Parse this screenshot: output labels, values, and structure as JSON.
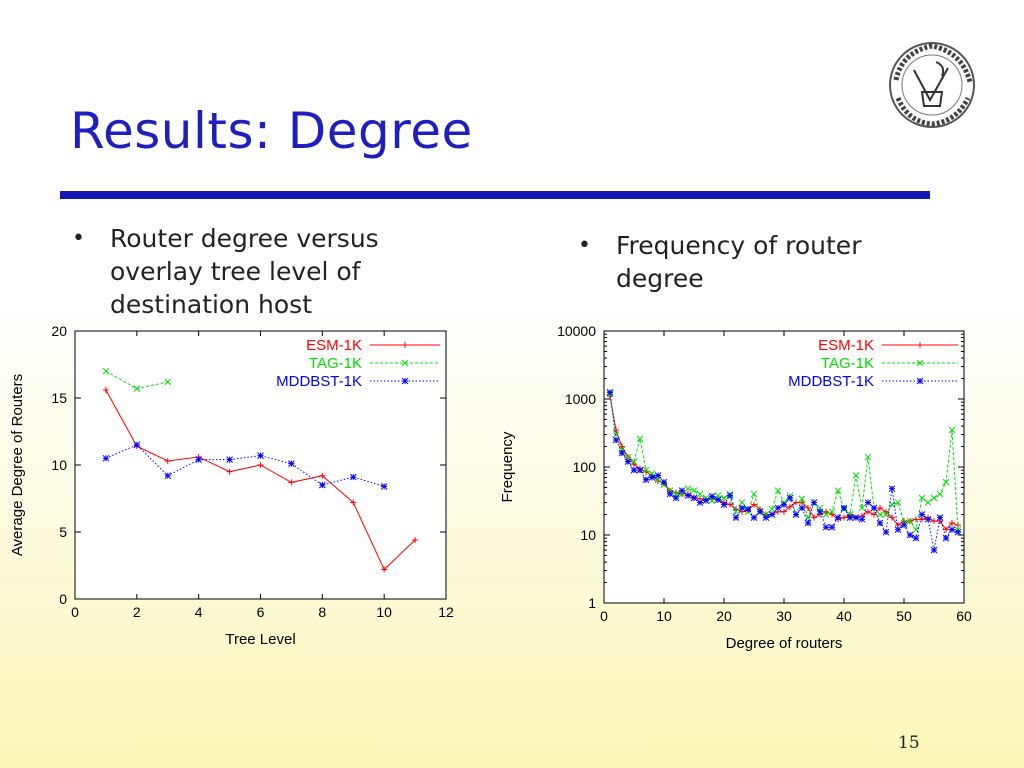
{
  "slide": {
    "title": "Results: Degree",
    "page_number": "15",
    "bullets_left": [
      "Router degree versus overlay tree level of destination host"
    ],
    "bullets_right": [
      "Frequency of router degree"
    ],
    "bullet_glyph": "•",
    "logo_icon": "university-seal-logo",
    "colors": {
      "title": "#1f1fbf",
      "rule": "#1717b5",
      "esm": "#ff0000",
      "tag": "#00dd00",
      "mddbst": "#0000ff"
    }
  },
  "chart_data": [
    {
      "type": "line",
      "xlabel": "Tree Level",
      "ylabel": "Average Degree of Routers",
      "xlim": [
        0,
        12
      ],
      "ylim": [
        0,
        20
      ],
      "x_ticks": [
        "0",
        "2",
        "4",
        "6",
        "8",
        "10",
        "12"
      ],
      "y_ticks": [
        "0",
        "5",
        "10",
        "15",
        "20"
      ],
      "legend_position": "top-right",
      "series": [
        {
          "name": "ESM-1K",
          "color": "#ff0000",
          "marker": "+",
          "dash": "solid",
          "x": [
            1,
            2,
            3,
            4,
            5,
            6,
            7,
            8,
            9,
            10,
            11
          ],
          "y": [
            15.6,
            11.4,
            10.3,
            10.6,
            9.5,
            10.0,
            8.7,
            9.2,
            7.2,
            2.2,
            4.4
          ]
        },
        {
          "name": "TAG-1K",
          "color": "#00dd00",
          "marker": "x",
          "dash": "dashed",
          "x": [
            1,
            2,
            3
          ],
          "y": [
            17.0,
            15.7,
            16.2
          ]
        },
        {
          "name": "MDDBST-1K",
          "color": "#0000ff",
          "marker": "*",
          "dash": "dotted",
          "x": [
            1,
            2,
            3,
            4,
            5,
            6,
            7,
            8,
            9,
            10
          ],
          "y": [
            10.5,
            11.5,
            9.2,
            10.4,
            10.4,
            10.7,
            10.1,
            8.5,
            9.1,
            8.4
          ]
        }
      ]
    },
    {
      "type": "line",
      "xlabel": "Degree of routers",
      "ylabel": "Frequency",
      "xlim": [
        0,
        60
      ],
      "ylim": [
        1,
        10000
      ],
      "yscale": "log",
      "x_ticks": [
        "0",
        "10",
        "20",
        "30",
        "40",
        "50",
        "60"
      ],
      "y_ticks": [
        "1",
        "10",
        "100",
        "1000",
        "10000"
      ],
      "legend_position": "top-right",
      "series": [
        {
          "name": "ESM-1K",
          "color": "#ff0000",
          "marker": "+",
          "dash": "solid",
          "x": [
            1,
            2,
            3,
            4,
            5,
            6,
            7,
            8,
            9,
            10,
            11,
            12,
            13,
            14,
            15,
            16,
            17,
            18,
            19,
            20,
            21,
            22,
            23,
            24,
            25,
            26,
            27,
            28,
            29,
            30,
            31,
            32,
            33,
            34,
            35,
            36,
            37,
            38,
            39,
            40,
            41,
            42,
            43,
            44,
            45,
            46,
            47,
            48,
            49,
            50,
            51,
            52,
            53,
            54,
            55,
            56,
            57,
            58,
            59
          ],
          "y": [
            1100,
            350,
            200,
            140,
            110,
            95,
            85,
            75,
            62,
            58,
            45,
            42,
            40,
            40,
            36,
            34,
            33,
            34,
            33,
            30,
            28,
            24,
            22,
            23,
            28,
            24,
            20,
            20,
            22,
            22,
            26,
            30,
            30,
            25,
            18,
            20,
            22,
            20,
            17,
            18,
            20,
            18,
            19,
            22,
            20,
            25,
            22,
            18,
            14,
            16,
            16,
            17,
            17,
            18,
            16,
            16,
            12,
            15,
            14
          ]
        },
        {
          "name": "TAG-1K",
          "color": "#00dd00",
          "marker": "x",
          "dash": "dashed",
          "x": [
            1,
            2,
            3,
            4,
            5,
            6,
            7,
            8,
            9,
            10,
            11,
            12,
            13,
            14,
            15,
            16,
            17,
            18,
            19,
            20,
            21,
            22,
            23,
            24,
            25,
            26,
            27,
            28,
            29,
            30,
            31,
            32,
            33,
            34,
            35,
            36,
            37,
            38,
            39,
            40,
            41,
            42,
            43,
            44,
            45,
            46,
            47,
            48,
            49,
            50,
            51,
            52,
            53,
            54,
            55,
            56,
            57,
            58,
            59
          ],
          "y": [
            1200,
            300,
            180,
            140,
            120,
            260,
            90,
            80,
            65,
            55,
            45,
            40,
            40,
            48,
            45,
            40,
            35,
            32,
            38,
            35,
            40,
            22,
            30,
            22,
            40,
            22,
            20,
            24,
            45,
            30,
            38,
            20,
            34,
            18,
            30,
            25,
            20,
            22,
            45,
            24,
            20,
            75,
            25,
            140,
            25,
            20,
            20,
            28,
            30,
            15,
            16,
            12,
            35,
            30,
            35,
            40,
            60,
            350,
            12
          ]
        },
        {
          "name": "MDDBST-1K",
          "color": "#0000ff",
          "marker": "*",
          "dash": "dotted",
          "x": [
            1,
            2,
            3,
            4,
            5,
            6,
            7,
            8,
            9,
            10,
            11,
            12,
            13,
            14,
            15,
            16,
            17,
            18,
            19,
            20,
            21,
            22,
            23,
            24,
            25,
            26,
            27,
            28,
            29,
            30,
            31,
            32,
            33,
            34,
            35,
            36,
            37,
            38,
            39,
            40,
            41,
            42,
            43,
            44,
            45,
            46,
            47,
            48,
            49,
            50,
            51,
            52,
            53,
            54,
            55,
            56,
            57,
            58,
            59
          ],
          "y": [
            1250,
            250,
            160,
            120,
            90,
            90,
            65,
            70,
            75,
            60,
            40,
            35,
            45,
            38,
            35,
            30,
            32,
            37,
            33,
            28,
            38,
            18,
            25,
            24,
            18,
            22,
            18,
            20,
            25,
            28,
            35,
            20,
            25,
            15,
            30,
            22,
            13,
            13,
            18,
            25,
            18,
            18,
            17,
            30,
            25,
            15,
            11,
            48,
            12,
            14,
            10,
            9,
            20,
            17,
            6,
            18,
            9,
            12,
            11
          ]
        }
      ]
    }
  ]
}
